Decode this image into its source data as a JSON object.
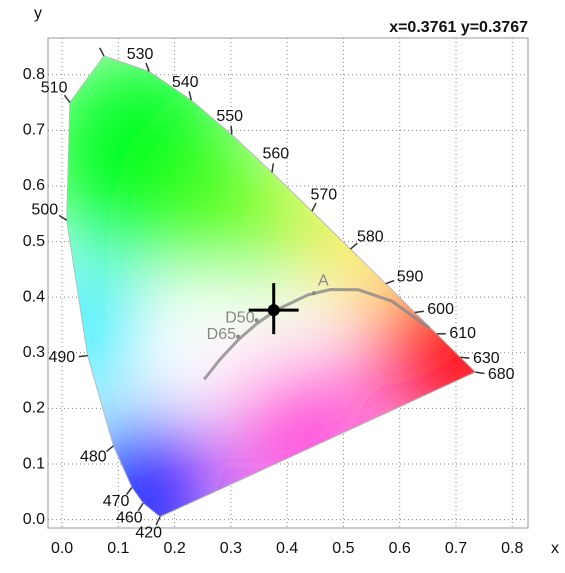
{
  "chart_data": {
    "type": "chromaticity",
    "x_label": "x",
    "y_label": "y",
    "readout": {
      "label": "x=0.3761 y=0.3767",
      "x": 0.3761,
      "y": 0.3767
    },
    "xlim": [
      -0.025,
      0.828
    ],
    "ylim": [
      -0.015,
      0.866
    ],
    "xticks": [
      {
        "value": 0,
        "label": "0.0"
      },
      0.1,
      0.2,
      0.3,
      0.4,
      0.5,
      0.6,
      0.7,
      0.8
    ],
    "yticks": [
      {
        "value": 0,
        "label": "0.0"
      },
      0.1,
      0.2,
      0.3,
      0.4,
      0.5,
      0.6,
      0.7,
      0.8
    ],
    "grid": true,
    "locus": {
      "labels": [
        "420",
        "460",
        "470",
        "480",
        "490",
        "500",
        "510",
        null,
        "530",
        "540",
        "550",
        "560",
        "570",
        "580",
        "590",
        "600",
        "610",
        "630",
        "680"
      ],
      "x": [
        0.1741,
        0.144,
        0.1241,
        0.0913,
        0.0454,
        0.0082,
        0.0139,
        0.0743,
        0.1547,
        0.2296,
        0.3016,
        0.3731,
        0.4441,
        0.5125,
        0.5752,
        0.627,
        0.6658,
        0.7079,
        0.7347
      ],
      "y": [
        0.005,
        0.0297,
        0.0578,
        0.1327,
        0.295,
        0.5384,
        0.7502,
        0.8338,
        0.8059,
        0.7543,
        0.6923,
        0.6245,
        0.5547,
        0.4866,
        0.4242,
        0.3725,
        0.334,
        0.292,
        0.2653
      ]
    },
    "planckian": {
      "x": [
        0.2525,
        0.2807,
        0.3135,
        0.3451,
        0.3805,
        0.4369,
        0.477,
        0.5266,
        0.5857,
        0.6528
      ],
      "y": [
        0.2522,
        0.2883,
        0.3237,
        0.3516,
        0.3768,
        0.4041,
        0.4137,
        0.4133,
        0.3931,
        0.3444
      ],
      "color": "#888888"
    },
    "illuminants": [
      {
        "label": "D65",
        "x": 0.3127,
        "y": 0.329
      },
      {
        "label": "D50",
        "x": 0.3457,
        "y": 0.3585
      },
      {
        "label": "A",
        "x": 0.4476,
        "y": 0.4074
      }
    ]
  }
}
